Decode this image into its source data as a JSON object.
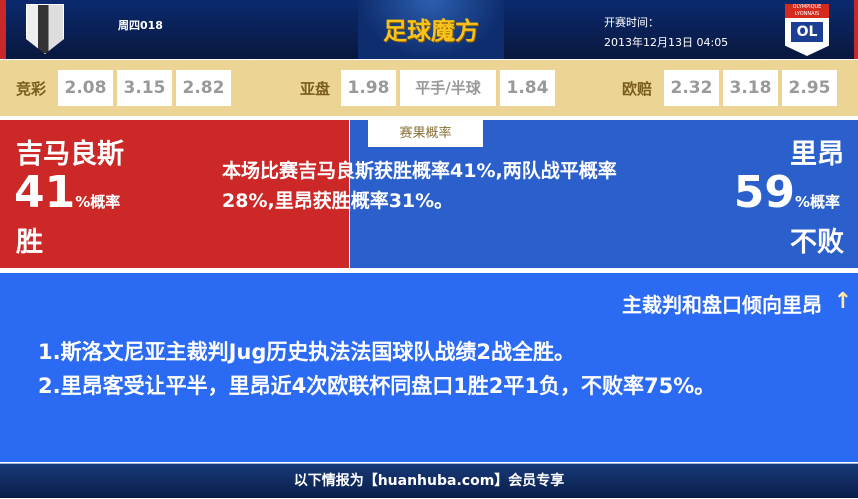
{
  "header": {
    "match_no": "周四018",
    "brand": "足球魔方",
    "kickoff_label": "开赛时间：",
    "kickoff_time": "2013年12月13日 04:05",
    "home_logo_text": "V",
    "away_logo_text": "OLYMPIQUE LYONNAIS",
    "away_logo_mono": "OL"
  },
  "odds": {
    "jingcai": {
      "label": "竞彩",
      "values": [
        "2.08",
        "3.15",
        "2.82"
      ]
    },
    "asian": {
      "label": "亚盘",
      "values": [
        "1.98",
        "平手/半球",
        "1.84"
      ]
    },
    "euro": {
      "label": "欧赔",
      "values": [
        "2.32",
        "3.18",
        "2.95"
      ]
    }
  },
  "probability": {
    "tab": "赛果概率",
    "home": {
      "name": "吉马良斯",
      "pct": "41",
      "unit": "%概率",
      "outcome": "胜"
    },
    "away": {
      "name": "里昂",
      "pct": "59",
      "unit": "%概率",
      "outcome": "不败"
    },
    "summary": "本场比赛吉马良斯获胜概率41%,两队战平概率28%,里昂获胜概率31%。"
  },
  "analysis": {
    "title": "主裁判和盘口倾向里昂",
    "arrow": "↑",
    "points": [
      "1.斯洛文尼亚主裁判Jug历史执法法国球队战绩2战全胜。",
      "2.里昂客受让平半，里昂近4次欧联杯同盘口1胜2平1负，不败率75%。"
    ]
  },
  "footer": {
    "text": "以下情报为【huanhuba.com】会员专享"
  },
  "colors": {
    "home": "#cc2828",
    "away": "#2a5fcc",
    "panel": "#2b6af2",
    "odds_bar": "#ecd594"
  }
}
